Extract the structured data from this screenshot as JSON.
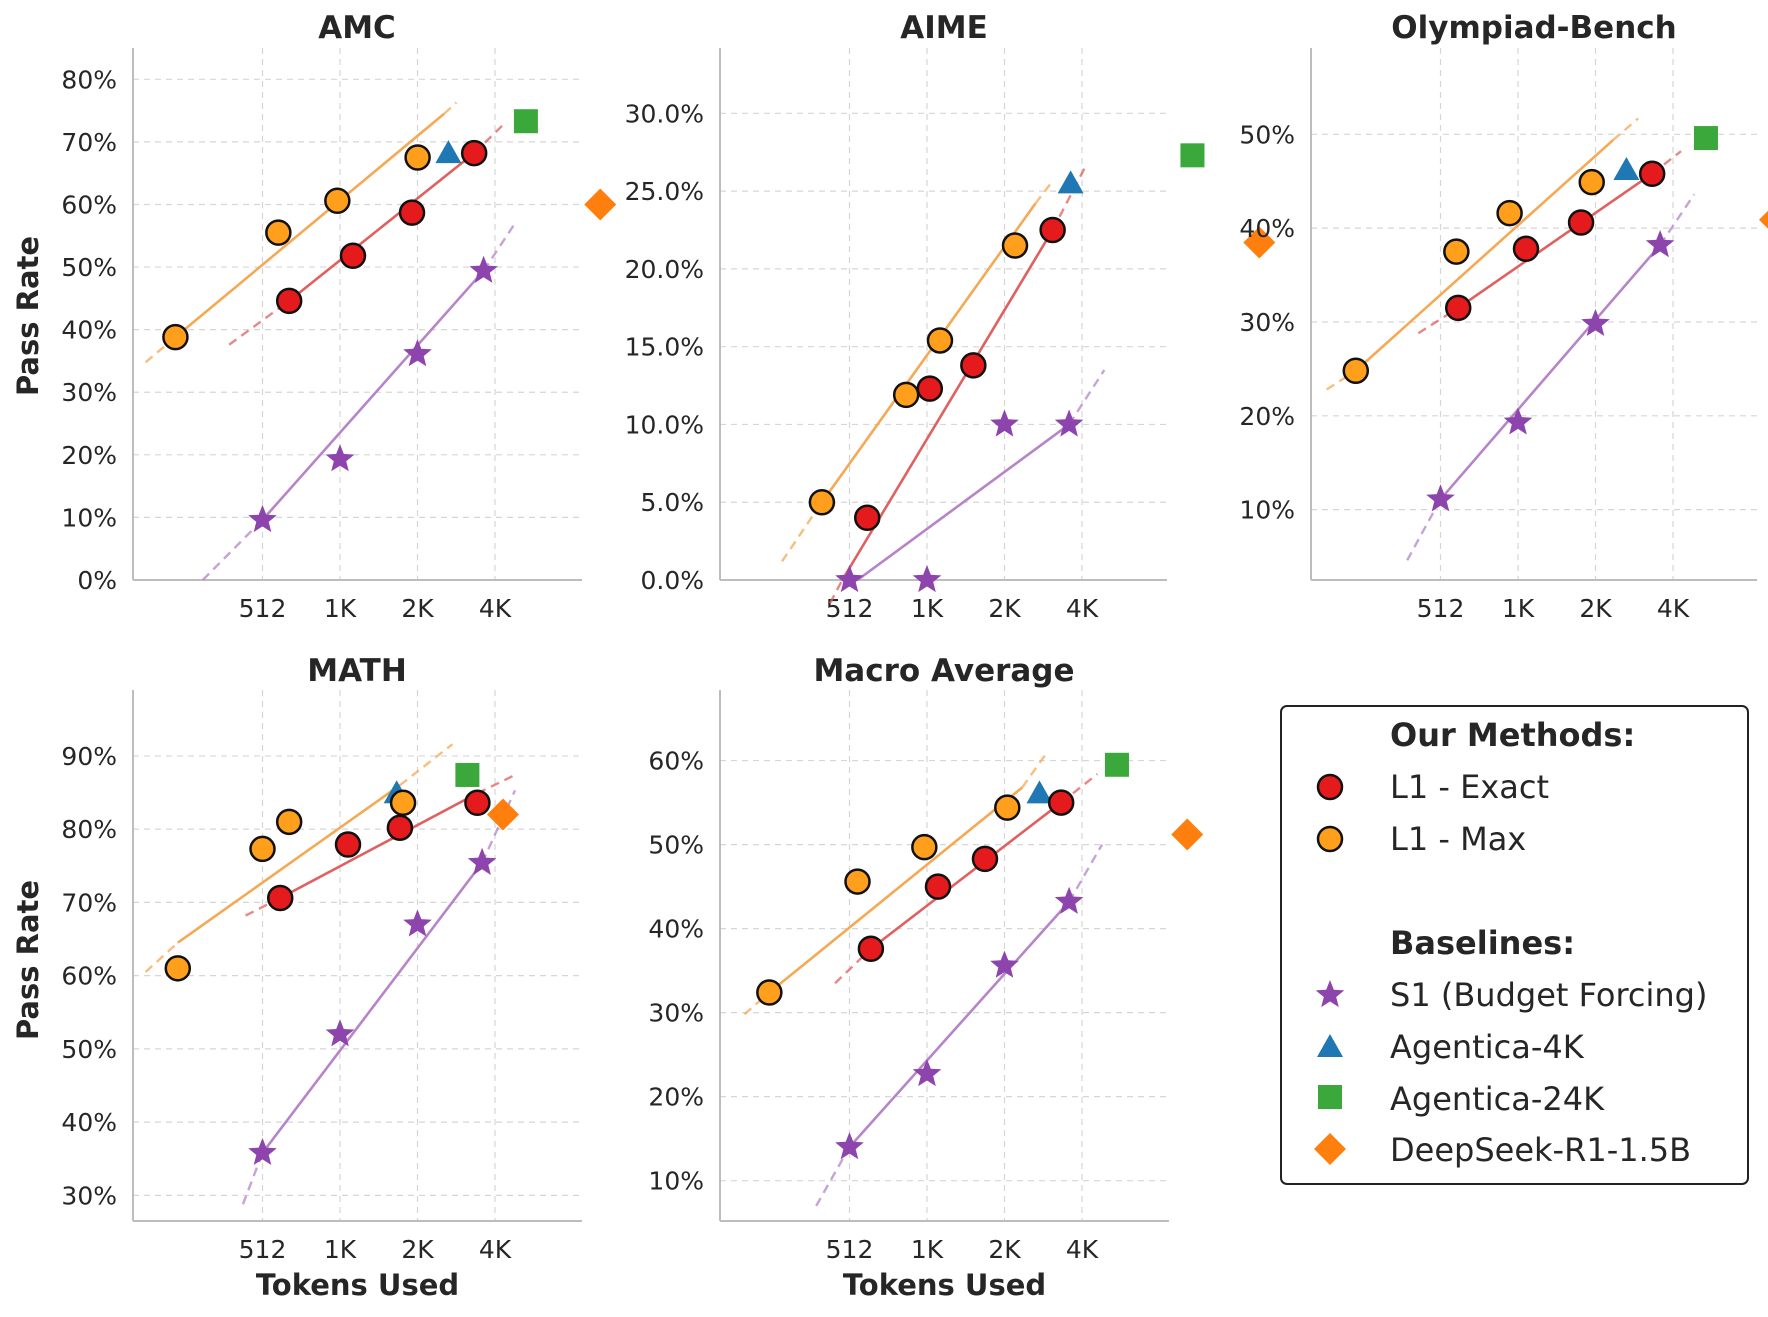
{
  "figure": {
    "xlabel": "Tokens Used",
    "ylabel": "Pass Rate",
    "xticks": [
      "512",
      "1K",
      "2K",
      "4K"
    ]
  },
  "legend": {
    "our_methods_title": "Our Methods:",
    "baselines_title": "Baselines:",
    "items": {
      "exact": "L1 - Exact",
      "max": "L1 - Max",
      "s1": "S1 (Budget Forcing)",
      "ag4k": "Agentica-4K",
      "ag24k": "Agentica-24K",
      "ds": "DeepSeek-R1-1.5B"
    }
  },
  "colors": {
    "exact": "#e41a1c",
    "max": "#ff9f1c",
    "s1": "#8e44ad",
    "ag4k": "#1f77b4",
    "ag24k": "#3aa83a",
    "ds": "#ff7f0e",
    "exact_line": "#e06060",
    "max_line": "#f5a955",
    "s1_line": "#b585c8"
  },
  "chart_data": [
    {
      "type": "scatter",
      "title": "AMC",
      "xscale": "log2",
      "xlabel": "",
      "ylabel": "Pass Rate",
      "ylim": [
        0,
        85
      ],
      "yticks": [
        0,
        10,
        20,
        30,
        40,
        50,
        60,
        70,
        80
      ],
      "ytick_labels": [
        "0%",
        "10%",
        "20%",
        "30%",
        "40%",
        "50%",
        "60%",
        "70%",
        "80%"
      ],
      "series": [
        {
          "name": "L1 - Exact",
          "key": "exact",
          "x": [
            650,
            1150,
            1950,
            3400
          ],
          "y": [
            44.6,
            51.8,
            58.7,
            68.2
          ]
        },
        {
          "name": "L1 - Max",
          "key": "max",
          "x": [
            235,
            590,
            1000,
            2050
          ],
          "y": [
            38.8,
            55.5,
            60.6,
            67.5
          ]
        },
        {
          "name": "S1 (Budget Forcing)",
          "key": "s1",
          "x": [
            512,
            1024,
            2048,
            3700
          ],
          "y": [
            9.6,
            19.3,
            36.1,
            49.4
          ]
        },
        {
          "name": "Agentica-4K",
          "key": "ag4k",
          "x": [
            2700
          ],
          "y": [
            68.2
          ]
        },
        {
          "name": "Agentica-24K",
          "key": "ag24k",
          "x": [
            5400
          ],
          "y": [
            73.3
          ]
        },
        {
          "name": "DeepSeek-R1-1.5B",
          "key": "ds",
          "x": [
            10500
          ],
          "y": [
            60.0
          ]
        }
      ],
      "trends": [
        {
          "key": "max",
          "x": [
            235,
            2600
          ],
          "y": [
            38.8,
            74.5
          ],
          "dash_from": [
            180,
            235
          ],
          "dash_y": [
            34.8,
            38.8
          ],
          "dash_to": [
            2600,
            2900
          ],
          "dash_to_y": [
            74.5,
            76.3
          ]
        },
        {
          "key": "exact",
          "x": [
            650,
            3400
          ],
          "y": [
            44.6,
            68.2
          ],
          "dash_from": [
            380,
            650
          ],
          "dash_y": [
            37.6,
            44.6
          ],
          "dash_to": [
            3400,
            4500
          ],
          "dash_to_y": [
            68.2,
            73.1
          ]
        },
        {
          "key": "s1",
          "x": [
            512,
            3700
          ],
          "y": [
            9.6,
            49.4
          ],
          "dash_from": [
            300,
            512
          ],
          "dash_y": [
            0,
            9.6
          ],
          "dash_to": [
            3700,
            4900
          ],
          "dash_to_y": [
            49.4,
            57.0
          ]
        }
      ]
    },
    {
      "type": "scatter",
      "title": "AIME",
      "xscale": "log2",
      "xlabel": "",
      "ylabel": "",
      "ylim": [
        0,
        34.2
      ],
      "yticks": [
        0,
        5,
        10,
        15,
        20,
        25,
        30
      ],
      "ytick_labels": [
        "0.0%",
        "5.0%",
        "10.0%",
        "15.0%",
        "20.0%",
        "25.0%",
        "30.0%"
      ],
      "series": [
        {
          "name": "L1 - Exact",
          "key": "exact",
          "x": [
            600,
            1050,
            1550,
            3150
          ],
          "y": [
            4.0,
            12.3,
            13.8,
            22.5
          ]
        },
        {
          "name": "L1 - Max",
          "key": "max",
          "x": [
            400,
            850,
            1150,
            2250
          ],
          "y": [
            5.0,
            11.9,
            15.4,
            21.5
          ]
        },
        {
          "name": "S1 (Budget Forcing)",
          "key": "s1",
          "x": [
            512,
            1024,
            2048,
            3650
          ],
          "y": [
            0.0,
            0.0,
            10.0,
            10.0
          ]
        },
        {
          "name": "Agentica-4K",
          "key": "ag4k",
          "x": [
            3700
          ],
          "y": [
            25.5
          ]
        },
        {
          "name": "Agentica-24K",
          "key": "ag24k",
          "x": [
            11000
          ],
          "y": [
            27.3
          ]
        },
        {
          "name": "DeepSeek-R1-1.5B",
          "key": "ds",
          "x": [
            20000
          ],
          "y": [
            21.7
          ]
        }
      ],
      "trends": [
        {
          "key": "max",
          "x": [
            400,
            2700
          ],
          "y": [
            5.0,
            24.2
          ],
          "dash_from": [
            280,
            400
          ],
          "dash_y": [
            1.2,
            5.0
          ],
          "dash_to": [
            2700,
            3100
          ],
          "dash_to_y": [
            24.2,
            25.5
          ]
        },
        {
          "key": "exact",
          "x": [
            480,
            3150
          ],
          "y": [
            0,
            22.5
          ],
          "dash_from": [
            430,
            480
          ],
          "dash_y": [
            -1.5,
            0
          ],
          "dash_to": [
            3150,
            4200
          ],
          "dash_to_y": [
            22.5,
            26.5
          ]
        },
        {
          "key": "s1",
          "x": [
            550,
            3650
          ],
          "y": [
            0,
            10.0
          ],
          "dash_from": [
            3650,
            5000
          ],
          "dash_y": [
            10.0,
            13.5
          ]
        }
      ]
    },
    {
      "type": "scatter",
      "title": "Olympiad-Bench",
      "xscale": "log2",
      "xlabel": "",
      "ylabel": "",
      "ylim": [
        2.5,
        59.2
      ],
      "yticks": [
        10,
        20,
        30,
        40,
        50
      ],
      "ytick_labels": [
        "10%",
        "20%",
        "30%",
        "40%",
        "50%"
      ],
      "series": [
        {
          "name": "L1 - Exact",
          "key": "exact",
          "x": [
            600,
            1100,
            1800,
            3400
          ],
          "y": [
            31.5,
            37.8,
            40.6,
            45.8
          ]
        },
        {
          "name": "L1 - Max",
          "key": "max",
          "x": [
            240,
            590,
            950,
            1980
          ],
          "y": [
            24.8,
            37.5,
            41.6,
            44.9
          ]
        },
        {
          "name": "S1 (Budget Forcing)",
          "key": "s1",
          "x": [
            512,
            1024,
            2048,
            3650
          ],
          "y": [
            11.1,
            19.3,
            29.8,
            38.2
          ]
        },
        {
          "name": "Agentica-4K",
          "key": "ag4k",
          "x": [
            2700
          ],
          "y": [
            46.2
          ]
        },
        {
          "name": "Agentica-24K",
          "key": "ag24k",
          "x": [
            5500
          ],
          "y": [
            49.6
          ]
        },
        {
          "name": "DeepSeek-R1-1.5B",
          "key": "ds",
          "x": [
            10200
          ],
          "y": [
            40.9
          ]
        }
      ],
      "trends": [
        {
          "key": "max",
          "x": [
            240,
            2400
          ],
          "y": [
            24.8,
            49.4
          ],
          "dash_from": [
            185,
            240
          ],
          "dash_y": [
            22.8,
            24.8
          ],
          "dash_to": [
            2400,
            3000
          ],
          "dash_to_y": [
            49.4,
            51.7
          ]
        },
        {
          "key": "exact",
          "x": [
            600,
            3400
          ],
          "y": [
            31.5,
            45.8
          ],
          "dash_from": [
            420,
            600
          ],
          "dash_y": [
            28.8,
            31.5
          ],
          "dash_to": [
            3400,
            4400
          ],
          "dash_to_y": [
            45.8,
            48.2
          ]
        },
        {
          "key": "s1",
          "x": [
            512,
            3650
          ],
          "y": [
            11.1,
            38.2
          ],
          "dash_from": [
            380,
            512
          ],
          "dash_y": [
            4.6,
            11.1
          ],
          "dash_to": [
            3650,
            4950
          ],
          "dash_to_y": [
            38.2,
            43.6
          ]
        }
      ]
    },
    {
      "type": "scatter",
      "title": "MATH",
      "xscale": "log2",
      "xlabel": "Tokens Used",
      "ylabel": "Pass Rate",
      "ylim": [
        26.5,
        99
      ],
      "yticks": [
        30,
        40,
        50,
        60,
        70,
        80,
        90
      ],
      "ytick_labels": [
        "30%",
        "40%",
        "50%",
        "60%",
        "70%",
        "80%",
        "90%"
      ],
      "series": [
        {
          "name": "L1 - Exact",
          "key": "exact",
          "x": [
            600,
            1100,
            1750,
            3500
          ],
          "y": [
            70.6,
            77.9,
            80.2,
            83.6
          ]
        },
        {
          "name": "L1 - Max",
          "key": "max",
          "x": [
            240,
            512,
            650,
            1800
          ],
          "y": [
            61.0,
            77.3,
            81.0,
            83.6
          ]
        },
        {
          "name": "S1 (Budget Forcing)",
          "key": "s1",
          "x": [
            512,
            1024,
            2048,
            3650
          ],
          "y": [
            35.8,
            52.0,
            67.0,
            75.4
          ]
        },
        {
          "name": "Agentica-4K",
          "key": "ag4k",
          "x": [
            1700
          ],
          "y": [
            84.9
          ]
        },
        {
          "name": "Agentica-24K",
          "key": "ag24k",
          "x": [
            3200
          ],
          "y": [
            87.4
          ]
        },
        {
          "name": "DeepSeek-R1-1.5B",
          "key": "ds",
          "x": [
            4400
          ],
          "y": [
            82.0
          ]
        }
      ],
      "trends": [
        {
          "key": "max",
          "x": [
            240,
            1750
          ],
          "y": [
            64.5,
            86.0
          ],
          "dash_from": [
            180,
            240
          ],
          "dash_y": [
            60.5,
            64.5
          ],
          "dash_to": [
            1750,
            2800
          ],
          "dash_to_y": [
            86.0,
            91.6
          ]
        },
        {
          "key": "exact",
          "x": [
            600,
            3500
          ],
          "y": [
            70.6,
            84.9
          ],
          "dash_from": [
            440,
            600
          ],
          "dash_y": [
            68.2,
            70.6
          ],
          "dash_to": [
            3500,
            4900
          ],
          "dash_to_y": [
            84.9,
            87.4
          ]
        },
        {
          "key": "s1",
          "x": [
            512,
            3650
          ],
          "y": [
            35.8,
            75.4
          ],
          "dash_from": [
            430,
            512
          ],
          "dash_y": [
            28.8,
            35.8
          ],
          "dash_to": [
            3650,
            4900
          ],
          "dash_to_y": [
            75.4,
            85.3
          ]
        }
      ]
    },
    {
      "type": "scatter",
      "title": "Macro Average",
      "xscale": "log2",
      "xlabel": "Tokens Used",
      "ylabel": "",
      "ylim": [
        5.2,
        68.4
      ],
      "yticks": [
        10,
        20,
        30,
        40,
        50,
        60
      ],
      "ytick_labels": [
        "10%",
        "20%",
        "30%",
        "40%",
        "50%",
        "60%"
      ],
      "series": [
        {
          "name": "L1 - Exact",
          "key": "exact",
          "x": [
            620,
            1130,
            1720,
            3400
          ],
          "y": [
            37.6,
            45.0,
            48.3,
            55.0
          ]
        },
        {
          "name": "L1 - Max",
          "key": "max",
          "x": [
            250,
            550,
            1000,
            2100
          ],
          "y": [
            32.4,
            45.6,
            49.7,
            54.4
          ]
        },
        {
          "name": "S1 (Budget Forcing)",
          "key": "s1",
          "x": [
            512,
            1024,
            2048,
            3650
          ],
          "y": [
            14.0,
            22.7,
            35.6,
            43.2
          ]
        },
        {
          "name": "Agentica-4K",
          "key": "ag4k",
          "x": [
            2800
          ],
          "y": [
            56.1
          ]
        },
        {
          "name": "Agentica-24K",
          "key": "ag24k",
          "x": [
            5600
          ],
          "y": [
            59.5
          ]
        },
        {
          "name": "DeepSeek-R1-1.5B",
          "key": "ds",
          "x": [
            10500
          ],
          "y": [
            51.2
          ]
        }
      ],
      "trends": [
        {
          "key": "max",
          "x": [
            250,
            2400
          ],
          "y": [
            32.4,
            56.8
          ],
          "dash_from": [
            200,
            250
          ],
          "dash_y": [
            29.8,
            32.4
          ],
          "dash_to": [
            2400,
            3000
          ],
          "dash_to_y": [
            56.8,
            61.0
          ]
        },
        {
          "key": "exact",
          "x": [
            620,
            3400
          ],
          "y": [
            37.6,
            55.0
          ],
          "dash_from": [
            450,
            620
          ],
          "dash_y": [
            33.5,
            37.6
          ],
          "dash_to": [
            3400,
            4700
          ],
          "dash_to_y": [
            55.0,
            58.4
          ]
        },
        {
          "key": "s1",
          "x": [
            512,
            3650
          ],
          "y": [
            14.0,
            43.2
          ],
          "dash_from": [
            380,
            512
          ],
          "dash_y": [
            7.0,
            14.0
          ],
          "dash_to": [
            3650,
            4900
          ],
          "dash_to_y": [
            43.2,
            50.0
          ]
        }
      ]
    }
  ]
}
